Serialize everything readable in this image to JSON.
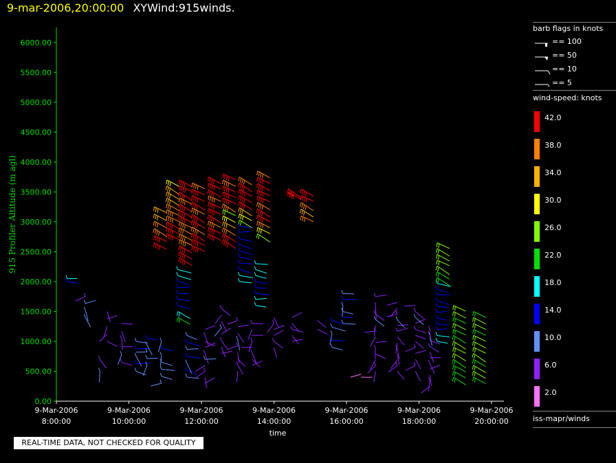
{
  "header": {
    "timestamp": "9-mar-2006,20:00:00",
    "product": "XYWind:915winds."
  },
  "footer_note": "REAL-TIME DATA, NOT CHECKED FOR QUALITY",
  "legend": {
    "barb_title": "barb flags in knots",
    "barbs": [
      "== 100",
      "== 50",
      "== 10",
      "== 5"
    ],
    "speed_title": "wind-speed: knots",
    "colors": [
      {
        "label": "42.0",
        "color": "#ff0000"
      },
      {
        "label": "38.0",
        "color": "#ff8000"
      },
      {
        "label": "34.0",
        "color": "#ffb000"
      },
      {
        "label": "30.0",
        "color": "#ffff00"
      },
      {
        "label": "26.0",
        "color": "#80ff00"
      },
      {
        "label": "22.0",
        "color": "#00e000"
      },
      {
        "label": "18.0",
        "color": "#00ffff"
      },
      {
        "label": "14.0",
        "color": "#0000ff"
      },
      {
        "label": "10.0",
        "color": "#6090ff"
      },
      {
        "label": "6.0",
        "color": "#9020ff"
      },
      {
        "label": "2.0",
        "color": "#ff70ff"
      }
    ],
    "source": "iss-mapr/winds"
  },
  "chart_data": {
    "type": "scatter",
    "ylabel": "915 Profiler Altitude (m agl)",
    "xlabel": "time",
    "ylim": [
      0,
      6200
    ],
    "xlim": [
      8,
      20.3
    ],
    "yticks": [
      "0.00",
      "500.00",
      "1000.00",
      "1500.00",
      "2000.00",
      "2500.00",
      "3000.00",
      "3500.00",
      "4000.00",
      "4500.00",
      "5000.00",
      "5500.00",
      "6000.00"
    ],
    "ytick_values": [
      0,
      500,
      1000,
      1500,
      2000,
      2500,
      3000,
      3500,
      4000,
      4500,
      5000,
      5500,
      6000
    ],
    "xticks": [
      {
        "date": "9-Mar-2006",
        "time": "8:00:00",
        "value": 8
      },
      {
        "date": "9-Mar-2006",
        "time": "10:00:00",
        "value": 10
      },
      {
        "date": "9-Mar-2006",
        "time": "12:00:00",
        "value": 12
      },
      {
        "date": "9-Mar-2006",
        "time": "14:00:00",
        "value": 14
      },
      {
        "date": "9-Mar-2006",
        "time": "16:00:00",
        "value": 16
      },
      {
        "date": "9-Mar-2006",
        "time": "18:00:00",
        "value": 18
      },
      {
        "date": "9-Mar-2006",
        "time": "20:00:00",
        "value": 20
      }
    ],
    "profiles": [
      {
        "hour": 8.3,
        "start": 2000,
        "end": 2050,
        "speeds": [
          16,
          17
        ]
      },
      {
        "hour": 8.8,
        "start": 1400,
        "end": 1750,
        "speeds": [
          11,
          10,
          9,
          8
        ]
      },
      {
        "hour": 9.2,
        "start": 500,
        "end": 700,
        "speeds": [
          9,
          8
        ]
      },
      {
        "hour": 9.4,
        "start": 1000,
        "end": 1500,
        "speeds": [
          7,
          6,
          7,
          6,
          7
        ]
      },
      {
        "hour": 9.8,
        "start": 650,
        "end": 1300,
        "speeds": [
          8,
          9,
          7,
          8,
          6,
          7
        ]
      },
      {
        "hour": 10.2,
        "start": 500,
        "end": 1000,
        "speeds": [
          12,
          13,
          11,
          14,
          12
        ]
      },
      {
        "hour": 10.5,
        "start": 600,
        "end": 1050,
        "speeds": [
          10,
          12,
          9,
          11,
          13
        ]
      },
      {
        "hour": 10.7,
        "start": 2650,
        "end": 3250,
        "speeds": [
          42,
          41,
          40,
          38,
          36,
          35
        ]
      },
      {
        "hour": 10.9,
        "start": 300,
        "end": 1000,
        "speeds": [
          10,
          11,
          12,
          9,
          10,
          13,
          11
        ]
      },
      {
        "hour": 11.05,
        "start": 2800,
        "end": 3700,
        "speeds": [
          42,
          42,
          41,
          40,
          40,
          38,
          36,
          35,
          33,
          31
        ]
      },
      {
        "hour": 11.35,
        "start": 1400,
        "end": 2200,
        "speeds": [
          22,
          20,
          16,
          15,
          14,
          14,
          15,
          17,
          18
        ]
      },
      {
        "hour": 11.4,
        "start": 2400,
        "end": 3700,
        "speeds": [
          42,
          42,
          41,
          40,
          40,
          39,
          40,
          41,
          42,
          41,
          40,
          42,
          41,
          42
        ]
      },
      {
        "hour": 11.6,
        "start": 400,
        "end": 1100,
        "speeds": [
          12,
          13,
          11,
          14,
          12,
          13,
          11
        ]
      },
      {
        "hour": 11.75,
        "start": 2600,
        "end": 3650,
        "speeds": [
          42,
          41,
          42,
          40,
          41,
          42,
          40,
          41,
          42,
          41,
          40
        ]
      },
      {
        "hour": 12.1,
        "start": 300,
        "end": 1200,
        "speeds": [
          7,
          6,
          8,
          7,
          9,
          8,
          7,
          6,
          8,
          7
        ]
      },
      {
        "hour": 12.2,
        "start": 2800,
        "end": 3750,
        "speeds": [
          42,
          41,
          40,
          42,
          41,
          42,
          40,
          41,
          42,
          41
        ]
      },
      {
        "hour": 12.55,
        "start": 800,
        "end": 1550,
        "speeds": [
          7,
          6,
          8,
          7,
          9,
          6,
          7,
          8
        ]
      },
      {
        "hour": 12.6,
        "start": 2700,
        "end": 3800,
        "speeds": [
          42,
          41,
          38,
          34,
          30,
          27,
          40,
          41,
          42,
          41,
          40,
          42
        ]
      },
      {
        "hour": 13.0,
        "start": 500,
        "end": 1350,
        "speeds": [
          7,
          8,
          6,
          7,
          8,
          9,
          7,
          6,
          8
        ]
      },
      {
        "hour": 13.05,
        "start": 2000,
        "end": 3750,
        "speeds": [
          18,
          17,
          15,
          14,
          14,
          13,
          14,
          15,
          14,
          14,
          26,
          30,
          35,
          41,
          42,
          41,
          42,
          40
        ]
      },
      {
        "hour": 13.4,
        "start": 600,
        "end": 1300,
        "speeds": [
          7,
          6,
          8,
          7,
          8,
          7,
          6,
          8
        ]
      },
      {
        "hour": 13.5,
        "start": 1600,
        "end": 2300,
        "speeds": [
          18,
          17,
          16,
          15,
          16,
          17,
          18,
          17
        ]
      },
      {
        "hour": 13.55,
        "start": 2800,
        "end": 3850,
        "speeds": [
          26,
          30,
          40,
          41,
          42,
          40,
          41,
          42,
          41,
          42,
          40
        ]
      },
      {
        "hour": 14.0,
        "start": 900,
        "end": 1400,
        "speeds": [
          7,
          8,
          6,
          7,
          8,
          7
        ]
      },
      {
        "hour": 14.4,
        "start": 3500,
        "end": 3550,
        "speeds": [
          42,
          41
        ]
      },
      {
        "hour": 14.5,
        "start": 1000,
        "end": 1400,
        "speeds": [
          7,
          6,
          8,
          7,
          6
        ]
      },
      {
        "hour": 14.75,
        "start": 3100,
        "end": 3550,
        "speeds": [
          38,
          36,
          40,
          41,
          42
        ]
      },
      {
        "hour": 15.2,
        "start": 1200,
        "end": 1350,
        "speeds": [
          7,
          6
        ]
      },
      {
        "hour": 15.6,
        "start": 900,
        "end": 1350,
        "speeds": [
          12,
          13,
          11,
          12,
          14
        ]
      },
      {
        "hour": 15.9,
        "start": 1300,
        "end": 1800,
        "speeds": [
          12,
          13,
          12,
          11,
          13,
          12
        ]
      },
      {
        "hour": 16.4,
        "start": 400,
        "end": 450,
        "speeds": [
          3,
          2
        ]
      },
      {
        "hour": 16.8,
        "start": 500,
        "end": 1750,
        "speeds": [
          7,
          8,
          6,
          7,
          8,
          7,
          6,
          8,
          7,
          9,
          8,
          7,
          6,
          8
        ]
      },
      {
        "hour": 17.4,
        "start": 500,
        "end": 1650,
        "speeds": [
          7,
          8,
          6,
          7,
          8,
          7,
          6,
          8,
          7,
          9,
          8,
          7,
          6
        ]
      },
      {
        "hour": 17.9,
        "start": 500,
        "end": 1600,
        "speeds": [
          7,
          8,
          6,
          7,
          8,
          7,
          6,
          8,
          7,
          9,
          8,
          7
        ]
      },
      {
        "hour": 18.3,
        "start": 250,
        "end": 1200,
        "speeds": [
          7,
          8,
          6,
          7,
          8,
          7,
          6,
          8,
          7,
          9,
          8
        ]
      },
      {
        "hour": 18.5,
        "start": 1000,
        "end": 2650,
        "speeds": [
          18,
          17,
          16,
          15,
          14,
          14,
          13,
          14,
          15,
          16,
          18,
          22,
          24,
          26,
          28,
          26,
          27,
          26
        ]
      },
      {
        "hour": 18.95,
        "start": 400,
        "end": 1600,
        "speeds": [
          24,
          22,
          23,
          24,
          25,
          26,
          25,
          24,
          23,
          26,
          24,
          25,
          26
        ]
      },
      {
        "hour": 19.5,
        "start": 400,
        "end": 1500,
        "speeds": [
          24,
          25,
          26,
          24,
          25,
          26,
          27,
          25,
          24,
          26,
          25,
          24
        ]
      }
    ]
  }
}
